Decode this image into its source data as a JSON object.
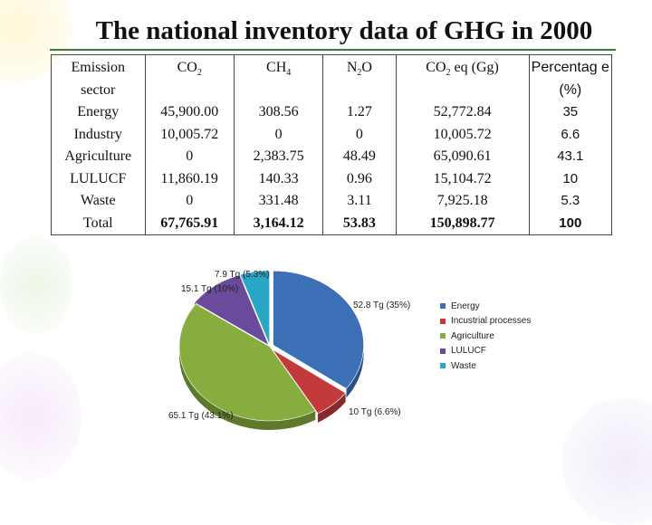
{
  "title": "The national inventory data of GHG in 2000",
  "table": {
    "headers": {
      "sector": "Emission sector",
      "co2": "CO2",
      "ch4": "CH4",
      "n2o": "N2O",
      "co2eq": "CO2 eq (Gg)",
      "pct": "Percentag e (%)"
    },
    "rows": [
      {
        "sector": "Energy",
        "co2": "45,900.00",
        "ch4": "308.56",
        "n2o": "1.27",
        "co2eq": "52,772.84",
        "pct": "35"
      },
      {
        "sector": "Industry",
        "co2": "10,005.72",
        "ch4": "0",
        "n2o": "0",
        "co2eq": "10,005.72",
        "pct": "6.6"
      },
      {
        "sector": "Agriculture",
        "co2": "0",
        "ch4": "2,383.75",
        "n2o": "48.49",
        "co2eq": "65,090.61",
        "pct": "43.1"
      },
      {
        "sector": "LULUCF",
        "co2": "11,860.19",
        "ch4": "140.33",
        "n2o": "0.96",
        "co2eq": "15,104.72",
        "pct": "10"
      },
      {
        "sector": "Waste",
        "co2": "0",
        "ch4": "331.48",
        "n2o": "3.11",
        "co2eq": "7,925.18",
        "pct": "5.3"
      },
      {
        "sector": "Total",
        "co2": "67,765.91",
        "ch4": "3,164.12",
        "n2o": "53.83",
        "co2eq": "150,898.77",
        "pct": "100"
      }
    ]
  },
  "chart_data": {
    "type": "pie",
    "title": "",
    "categories": [
      "Energy",
      "Incustrial processes",
      "Agriculture",
      "LULUCF",
      "Waste"
    ],
    "values": [
      52.8,
      10,
      65.1,
      15.1,
      7.9
    ],
    "percent": [
      35,
      6.6,
      43.1,
      10,
      5.3
    ],
    "data_labels": [
      "52.8 Tg (35%)",
      "10 Tg (6.6%)",
      "65.1 Tg (43.1%)",
      "15.1 Tg (10%)",
      "7.9 Tg (5.3%)"
    ],
    "colors": [
      "#3b6fb6",
      "#c23a3a",
      "#86ad3e",
      "#6a4a9a",
      "#2aa6c6"
    ],
    "legend_position": "right"
  }
}
